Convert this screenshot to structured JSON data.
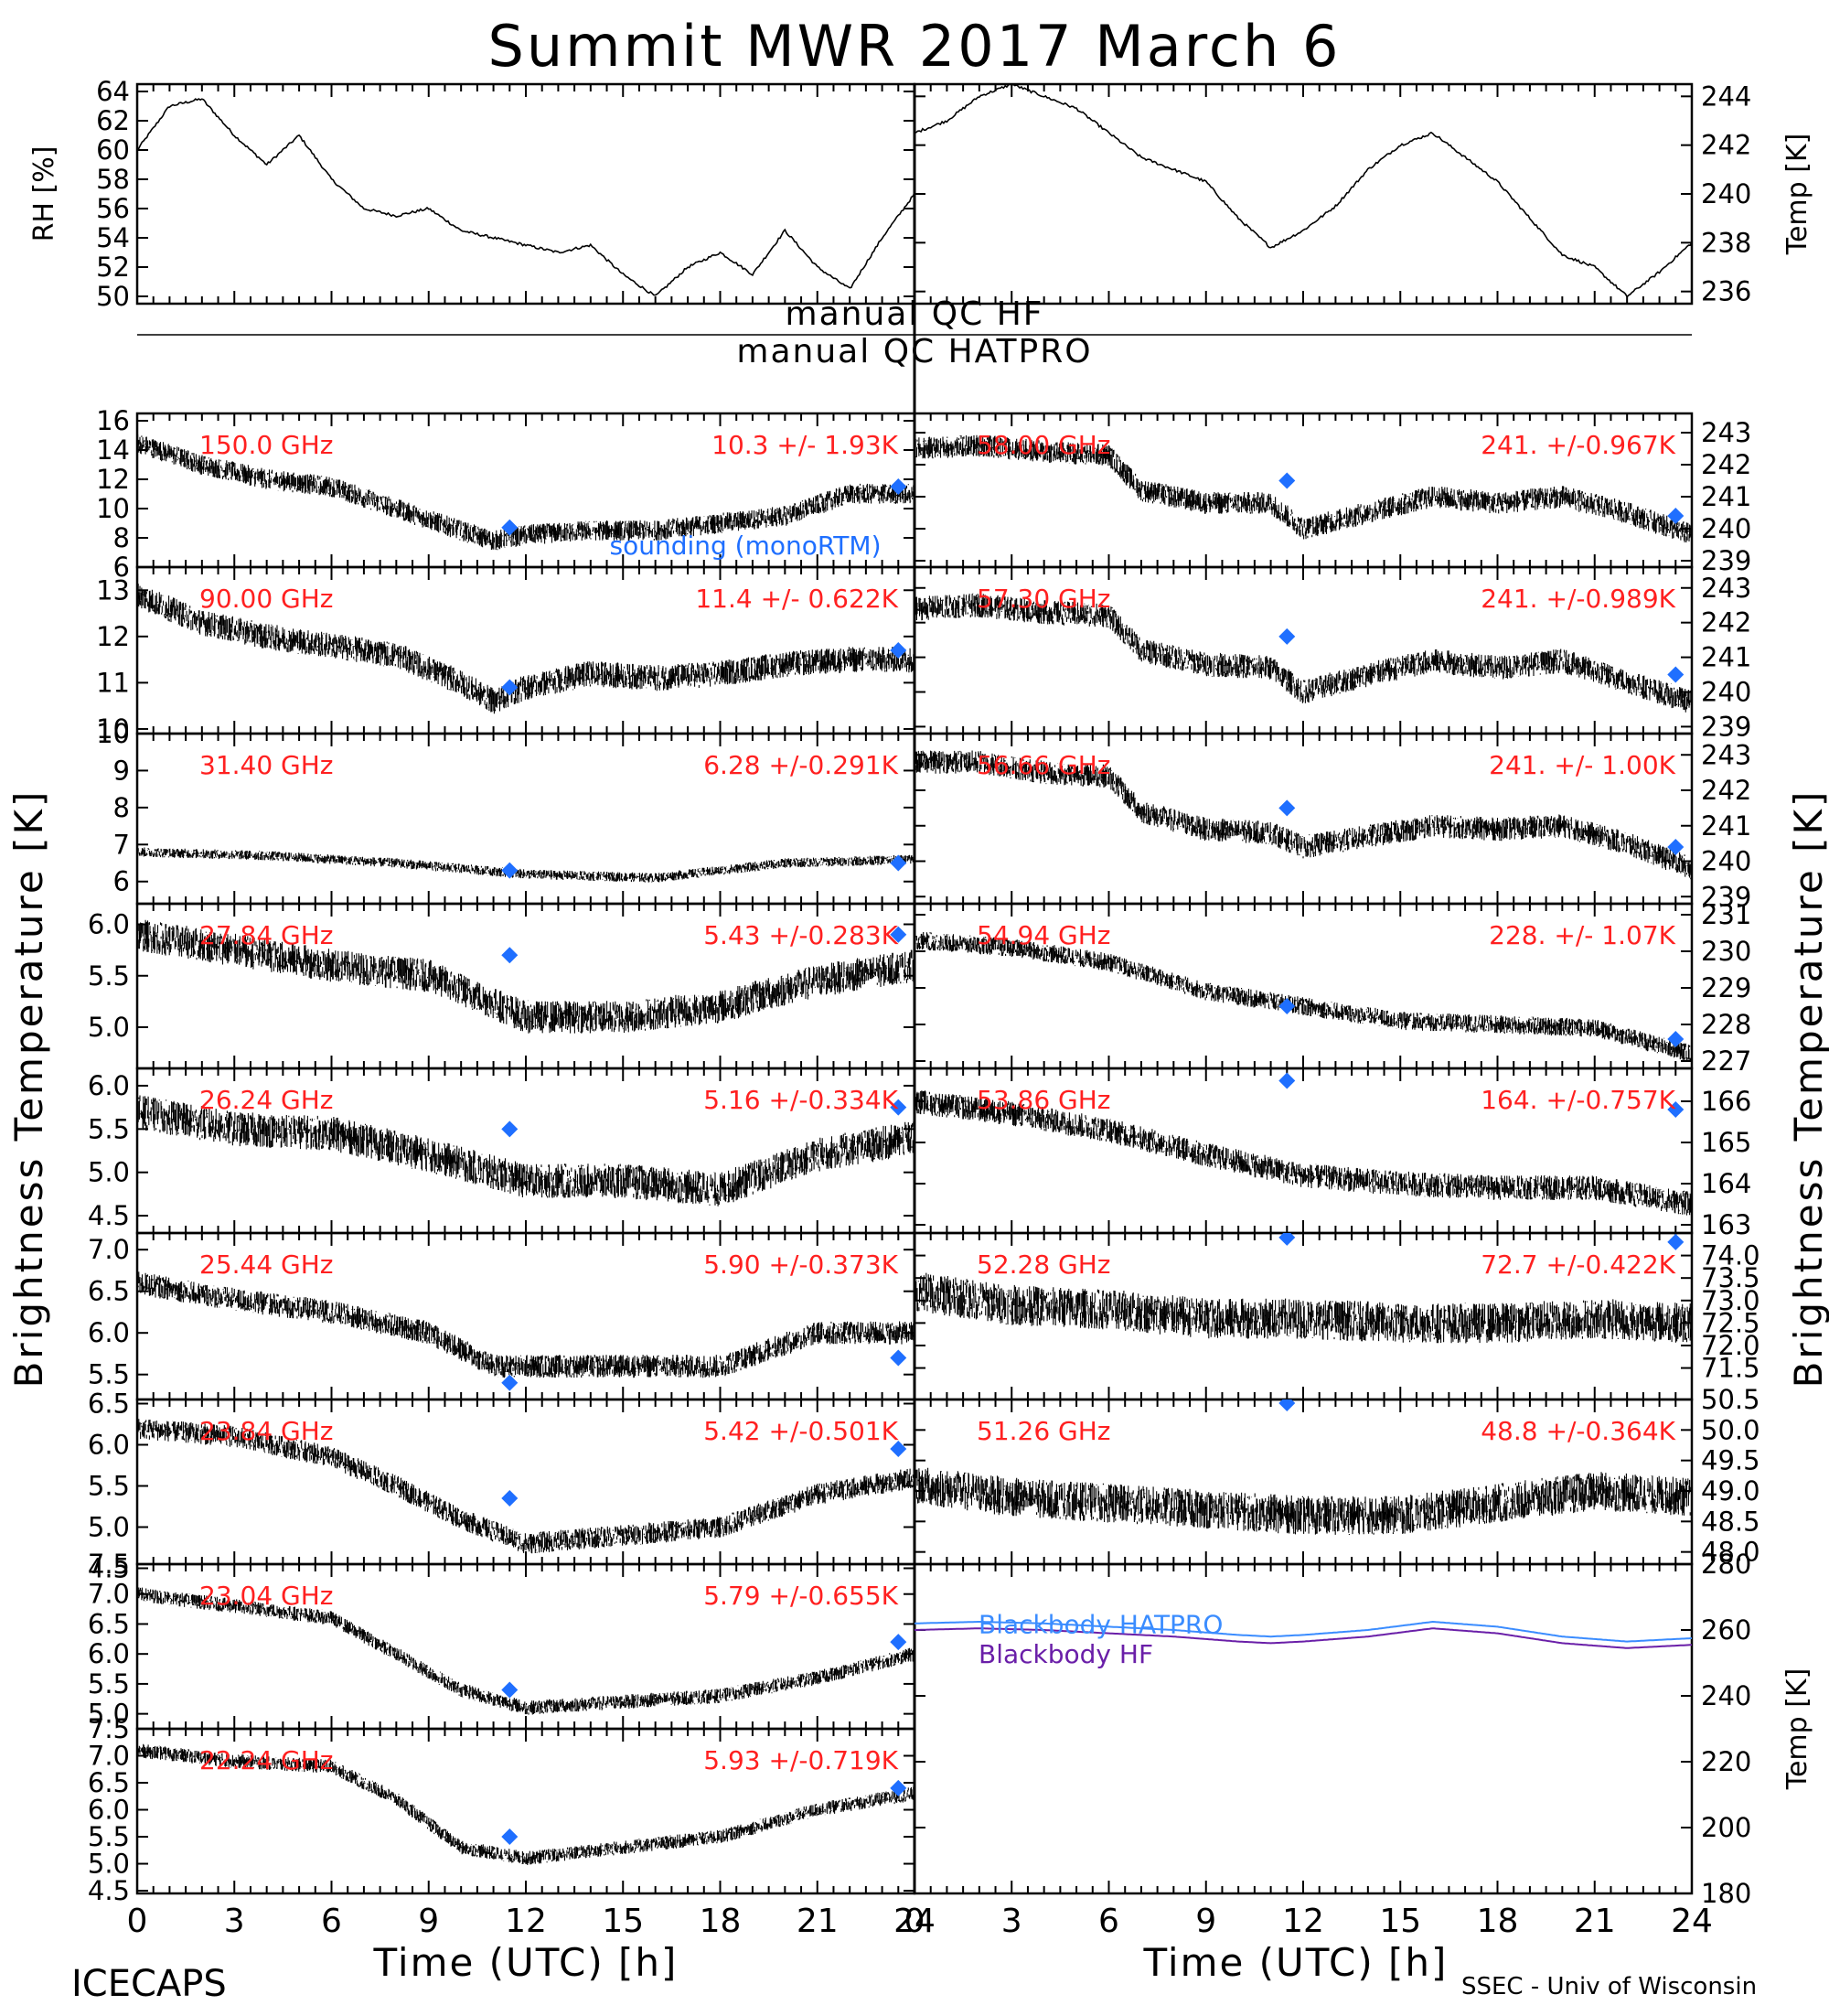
{
  "title": "Summit MWR 2017 March  6",
  "footer": {
    "left": "ICECAPS",
    "right": "SSEC - Univ of Wisconsin"
  },
  "xlabel": "Time (UTC) [h]",
  "ylabel_left": "Brightness Temperature [K]",
  "ylabel_right": "Brightness Temperature [K]",
  "qc": {
    "hf": "manual  QC HF",
    "hatpro": "manual  QC HATPRO"
  },
  "legend": {
    "sounding": "sounding (monoRTM)",
    "bb_hatpro": "Blackbody HATPRO",
    "bb_hf": "Blackbody HF"
  },
  "colors": {
    "text": "#000000",
    "channel_label": "#ff2020",
    "sounding": "#1f6fff",
    "bb_hatpro": "#3a8cff",
    "bb_hf": "#6a1fa8"
  },
  "chart_data": [
    {
      "id": "rh",
      "type": "line",
      "ylabel": "RH [%]",
      "ylim": [
        49.5,
        64.5
      ],
      "yticks": [
        "50",
        "52",
        "54",
        "56",
        "58",
        "60",
        "62",
        "64"
      ],
      "xlim": [
        0,
        24
      ],
      "series": [
        {
          "x": [
            0,
            1,
            2,
            3,
            4,
            5,
            6,
            7,
            8,
            9,
            10,
            11,
            12,
            13,
            14,
            15,
            16,
            17,
            18,
            19,
            20,
            21,
            22,
            23,
            24
          ],
          "y": [
            60,
            63,
            63.5,
            61,
            59,
            61,
            58,
            56,
            55.5,
            56,
            54.5,
            54,
            53.5,
            53,
            53.5,
            51.5,
            50,
            52,
            53,
            51.5,
            54.5,
            52,
            50.5,
            54,
            57
          ]
        }
      ]
    },
    {
      "id": "temp",
      "type": "line",
      "ylabel": "Temp [K]",
      "ylim": [
        235.5,
        244.5
      ],
      "yticks": [
        "236",
        "238",
        "240",
        "242",
        "244"
      ],
      "xlim": [
        0,
        24
      ],
      "series": [
        {
          "x": [
            0,
            1,
            2,
            3,
            4,
            5,
            6,
            7,
            8,
            9,
            10,
            11,
            12,
            13,
            14,
            15,
            16,
            17,
            18,
            19,
            20,
            21,
            22,
            23,
            24
          ],
          "y": [
            242.5,
            243,
            244,
            244.5,
            244,
            243.5,
            242.5,
            241.5,
            241,
            240.5,
            239,
            237.8,
            238.5,
            239.5,
            241,
            242,
            242.5,
            241.5,
            240.5,
            239,
            237.5,
            237,
            235.8,
            236.8,
            238
          ]
        }
      ]
    },
    {
      "id": "ch150",
      "type": "scatter",
      "channel": "150.0 GHz",
      "stat": "10.3 +/-  1.93K",
      "ylim": [
        6,
        16.5
      ],
      "yticks": [
        "16",
        "14",
        "12",
        "10",
        "8",
        "6"
      ],
      "xlim": [
        0,
        24
      ],
      "noise": 0.7,
      "series": [
        {
          "x": [
            0,
            2,
            4,
            6,
            8,
            10,
            11,
            12,
            14,
            16,
            18,
            20,
            22,
            24
          ],
          "y": [
            14.5,
            13,
            12,
            11.5,
            10,
            8.5,
            7.8,
            8.2,
            8.5,
            8.5,
            9,
            9.5,
            11,
            11
          ]
        }
      ],
      "sounding": [
        [
          11.5,
          8.7
        ],
        [
          23.5,
          11.5
        ]
      ]
    },
    {
      "id": "ch90",
      "type": "scatter",
      "channel": "90.00 GHz",
      "stat": "11.4 +/- 0.622K",
      "ylim": [
        9.9,
        13.5
      ],
      "yticks": [
        "13",
        "12",
        "11",
        "10"
      ],
      "xlim": [
        0,
        24
      ],
      "noise": 0.28,
      "series": [
        {
          "x": [
            0,
            2,
            4,
            6,
            8,
            10,
            11,
            12,
            14,
            16,
            18,
            20,
            22,
            24
          ],
          "y": [
            12.9,
            12.3,
            12,
            11.8,
            11.6,
            11,
            10.6,
            10.9,
            11.2,
            11.1,
            11.2,
            11.4,
            11.5,
            11.5
          ]
        }
      ],
      "sounding": [
        [
          11.5,
          10.9
        ],
        [
          23.5,
          11.7
        ]
      ]
    },
    {
      "id": "ch31",
      "type": "scatter",
      "channel": "31.40 GHz",
      "stat": "6.28 +/-0.291K",
      "ylim": [
        5.4,
        10
      ],
      "yticks": [
        "10",
        "9",
        "8",
        "7",
        "6"
      ],
      "xlim": [
        0,
        24
      ],
      "noise": 0.13,
      "series": [
        {
          "x": [
            0,
            4,
            8,
            12,
            16,
            20,
            24
          ],
          "y": [
            6.8,
            6.7,
            6.5,
            6.2,
            6.1,
            6.5,
            6.6
          ]
        }
      ],
      "sounding": [
        [
          11.5,
          6.3
        ],
        [
          23.5,
          6.5
        ]
      ]
    },
    {
      "id": "ch27",
      "type": "scatter",
      "channel": "27.84 GHz",
      "stat": "5.43 +/-0.283K",
      "ylim": [
        4.6,
        6.2
      ],
      "yticks": [
        "6.0",
        "5.5",
        "5.0"
      ],
      "xlim": [
        0,
        24
      ],
      "noise": 0.16,
      "series": [
        {
          "x": [
            0,
            3,
            6,
            9,
            12,
            15,
            18,
            21,
            24
          ],
          "y": [
            5.9,
            5.75,
            5.6,
            5.5,
            5.1,
            5.1,
            5.2,
            5.45,
            5.6
          ]
        }
      ],
      "sounding": [
        [
          11.5,
          5.7
        ],
        [
          23.5,
          5.9
        ]
      ]
    },
    {
      "id": "ch26",
      "type": "scatter",
      "channel": "26.24 GHz",
      "stat": "5.16 +/-0.334K",
      "ylim": [
        4.3,
        6.2
      ],
      "yticks": [
        "6.0",
        "5.5",
        "5.0",
        "4.5"
      ],
      "xlim": [
        0,
        24
      ],
      "noise": 0.2,
      "series": [
        {
          "x": [
            0,
            3,
            6,
            9,
            12,
            15,
            18,
            21,
            24
          ],
          "y": [
            5.7,
            5.5,
            5.45,
            5.2,
            4.9,
            4.9,
            4.8,
            5.2,
            5.4
          ]
        }
      ],
      "sounding": [
        [
          11.5,
          5.5
        ],
        [
          23.5,
          5.75
        ]
      ]
    },
    {
      "id": "ch25",
      "type": "scatter",
      "channel": "25.44 GHz",
      "stat": "5.90 +/-0.373K",
      "ylim": [
        5.2,
        7.2
      ],
      "yticks": [
        "7.0",
        "6.5",
        "6.0",
        "5.5"
      ],
      "xlim": [
        0,
        24
      ],
      "noise": 0.14,
      "series": [
        {
          "x": [
            0,
            3,
            6,
            9,
            11,
            12,
            15,
            18,
            21,
            24
          ],
          "y": [
            6.6,
            6.4,
            6.25,
            6.0,
            5.6,
            5.6,
            5.6,
            5.6,
            6.0,
            6.0
          ]
        }
      ],
      "sounding": [
        [
          11.5,
          5.4
        ],
        [
          23.5,
          5.7
        ]
      ]
    },
    {
      "id": "ch23b",
      "type": "scatter",
      "channel": "23.84 GHz",
      "stat": "5.42 +/-0.501K",
      "ylim": [
        4.55,
        6.55
      ],
      "yticks": [
        "6.5",
        "6.0",
        "5.5",
        "5.0",
        "4.5"
      ],
      "xlim": [
        0,
        24
      ],
      "noise": 0.13,
      "series": [
        {
          "x": [
            0,
            3,
            6,
            8,
            10,
            12,
            15,
            18,
            21,
            24
          ],
          "y": [
            6.2,
            6.1,
            5.85,
            5.5,
            5.1,
            4.8,
            4.9,
            5.0,
            5.4,
            5.6
          ]
        }
      ],
      "sounding": [
        [
          11.5,
          5.35
        ],
        [
          23.5,
          5.95
        ]
      ]
    },
    {
      "id": "ch23a",
      "type": "scatter",
      "channel": "23.04 GHz",
      "stat": "5.79 +/-0.655K",
      "ylim": [
        4.75,
        7.5
      ],
      "yticks": [
        "7.5",
        "7.0",
        "6.5",
        "6.0",
        "5.5",
        "5.0"
      ],
      "xlim": [
        0,
        24
      ],
      "noise": 0.12,
      "series": [
        {
          "x": [
            0,
            3,
            6,
            8,
            10,
            12,
            15,
            18,
            21,
            24
          ],
          "y": [
            7.0,
            6.8,
            6.6,
            6.0,
            5.4,
            5.1,
            5.2,
            5.3,
            5.6,
            6.0
          ]
        }
      ],
      "sounding": [
        [
          11.5,
          5.4
        ],
        [
          23.5,
          6.2
        ]
      ]
    },
    {
      "id": "ch22",
      "type": "scatter",
      "channel": "22.24 GHz",
      "stat": "5.93 +/-0.719K",
      "ylim": [
        4.45,
        7.5
      ],
      "yticks": [
        "7.5",
        "7.0",
        "6.5",
        "6.0",
        "5.5",
        "5.0",
        "4.5"
      ],
      "xlim": [
        0,
        24
      ],
      "noise": 0.13,
      "series": [
        {
          "x": [
            0,
            3,
            6,
            8,
            10,
            12,
            15,
            18,
            21,
            24
          ],
          "y": [
            7.1,
            6.9,
            6.8,
            6.2,
            5.3,
            5.1,
            5.3,
            5.5,
            6.0,
            6.3
          ]
        }
      ],
      "sounding": [
        [
          11.5,
          5.5
        ],
        [
          23.5,
          6.4
        ]
      ]
    },
    {
      "id": "ch58",
      "type": "scatter",
      "channel": "58.00 GHz",
      "stat": "241. +/-0.967K",
      "ylim": [
        238.8,
        243.6
      ],
      "yticks": [
        "243",
        "242",
        "241",
        "240",
        "239"
      ],
      "xlim": [
        0,
        24
      ],
      "noise": 0.35,
      "series": [
        {
          "x": [
            0,
            2,
            4,
            6,
            7,
            9,
            11,
            12,
            14,
            16,
            18,
            20,
            22,
            24
          ],
          "y": [
            242.5,
            242.6,
            242.4,
            242.3,
            241.2,
            240.8,
            240.8,
            240,
            240.5,
            241,
            240.8,
            241,
            240.5,
            239.8
          ]
        }
      ],
      "sounding": [
        [
          11.5,
          241.5
        ],
        [
          23.5,
          240.4
        ]
      ]
    },
    {
      "id": "ch57",
      "type": "scatter",
      "channel": "57.30 GHz",
      "stat": "241. +/-0.989K",
      "ylim": [
        238.8,
        243.6
      ],
      "yticks": [
        "243",
        "242",
        "241",
        "240",
        "239"
      ],
      "xlim": [
        0,
        24
      ],
      "noise": 0.35,
      "series": [
        {
          "x": [
            0,
            2,
            4,
            6,
            7,
            9,
            11,
            12,
            14,
            16,
            18,
            20,
            22,
            24
          ],
          "y": [
            242.4,
            242.5,
            242.3,
            242.2,
            241.2,
            240.8,
            240.7,
            240,
            240.5,
            240.9,
            240.7,
            240.9,
            240.3,
            239.7
          ]
        }
      ],
      "sounding": [
        [
          11.5,
          241.6
        ],
        [
          23.5,
          240.5
        ]
      ]
    },
    {
      "id": "ch56",
      "type": "scatter",
      "channel": "56.66 GHz",
      "stat": "241. +/- 1.00K",
      "ylim": [
        238.8,
        243.6
      ],
      "yticks": [
        "243",
        "242",
        "241",
        "240",
        "239"
      ],
      "xlim": [
        0,
        24
      ],
      "noise": 0.33,
      "series": [
        {
          "x": [
            0,
            2,
            4,
            6,
            7,
            9,
            11,
            12,
            14,
            16,
            18,
            20,
            22,
            24
          ],
          "y": [
            242.8,
            242.8,
            242.5,
            242.4,
            241.4,
            240.9,
            240.8,
            240.4,
            240.7,
            241,
            240.9,
            241,
            240.5,
            239.8
          ]
        }
      ],
      "sounding": [
        [
          11.5,
          241.5
        ],
        [
          23.5,
          240.4
        ]
      ]
    },
    {
      "id": "ch54",
      "type": "scatter",
      "channel": "54.94 GHz",
      "stat": "228. +/- 1.07K",
      "ylim": [
        226.8,
        231.3
      ],
      "yticks": [
        "231",
        "230",
        "229",
        "228",
        "227"
      ],
      "xlim": [
        0,
        24
      ],
      "noise": 0.25,
      "series": [
        {
          "x": [
            0,
            3,
            6,
            9,
            12,
            15,
            18,
            21,
            24
          ],
          "y": [
            230.3,
            230.1,
            229.7,
            228.9,
            228.5,
            228.1,
            228.0,
            227.9,
            227.2
          ]
        }
      ],
      "sounding": [
        [
          11.5,
          228.5
        ],
        [
          23.5,
          227.6
        ]
      ]
    },
    {
      "id": "ch53",
      "type": "scatter",
      "channel": "53.86 GHz",
      "stat": "164. +/-0.757K",
      "ylim": [
        162.8,
        166.8
      ],
      "yticks": [
        "166",
        "165",
        "164",
        "163"
      ],
      "xlim": [
        0,
        24
      ],
      "noise": 0.3,
      "series": [
        {
          "x": [
            0,
            3,
            6,
            9,
            12,
            15,
            18,
            21,
            24
          ],
          "y": [
            166,
            165.7,
            165.3,
            164.7,
            164.2,
            164.0,
            163.9,
            163.9,
            163.5
          ]
        }
      ],
      "sounding": [
        [
          11.5,
          166.5
        ],
        [
          23.5,
          165.8
        ]
      ]
    },
    {
      "id": "ch52",
      "type": "scatter",
      "channel": "52.28 GHz",
      "stat": "72.7 +/-0.422K",
      "ylim": [
        70.8,
        74.5
      ],
      "yticks": [
        "74.0",
        "73.5",
        "73.0",
        "72.5",
        "72.0",
        "71.5"
      ],
      "xlim": [
        0,
        24
      ],
      "noise": 0.45,
      "series": [
        {
          "x": [
            0,
            3,
            6,
            9,
            12,
            15,
            18,
            21,
            24
          ],
          "y": [
            73.2,
            72.9,
            72.8,
            72.6,
            72.6,
            72.5,
            72.5,
            72.6,
            72.5
          ]
        }
      ],
      "sounding": [
        [
          11.5,
          74.4
        ],
        [
          23.5,
          74.3
        ]
      ]
    },
    {
      "id": "ch51",
      "type": "scatter",
      "channel": "51.26 GHz",
      "stat": "48.8 +/-0.364K",
      "ylim": [
        47.8,
        50.5
      ],
      "yticks": [
        "50.5",
        "50.0",
        "49.5",
        "49.0",
        "48.5",
        "48.0"
      ],
      "xlim": [
        0,
        24
      ],
      "noise": 0.32,
      "series": [
        {
          "x": [
            0,
            3,
            6,
            9,
            12,
            15,
            18,
            21,
            24
          ],
          "y": [
            49.1,
            48.9,
            48.8,
            48.7,
            48.6,
            48.6,
            48.8,
            49.0,
            48.9
          ]
        }
      ],
      "sounding": [
        [
          11.5,
          50.6
        ]
      ]
    },
    {
      "id": "blackbody",
      "type": "line",
      "ylabel": "Temp [K]",
      "ylim": [
        180,
        280
      ],
      "yticks": [
        "280",
        "260",
        "240",
        "220",
        "200",
        "180"
      ],
      "xlim": [
        0,
        24
      ],
      "series": [
        {
          "name": "Blackbody HATPRO",
          "x": [
            0,
            2,
            4,
            6,
            8,
            10,
            11,
            12,
            14,
            16,
            18,
            20,
            22,
            24
          ],
          "y": [
            262,
            262.5,
            262,
            261,
            260,
            258.5,
            258,
            258.5,
            260,
            262.5,
            261,
            258,
            256.5,
            257.5
          ]
        },
        {
          "name": "Blackbody HF",
          "x": [
            0,
            2,
            4,
            6,
            8,
            10,
            11,
            12,
            14,
            16,
            18,
            20,
            22,
            24
          ],
          "y": [
            260,
            260.5,
            260,
            259,
            258,
            256.5,
            256,
            256.5,
            258,
            260.5,
            259,
            256,
            254.5,
            255.5
          ]
        }
      ]
    }
  ],
  "xticks": [
    "0",
    "3",
    "6",
    "9",
    "12",
    "15",
    "18",
    "21",
    "24"
  ]
}
